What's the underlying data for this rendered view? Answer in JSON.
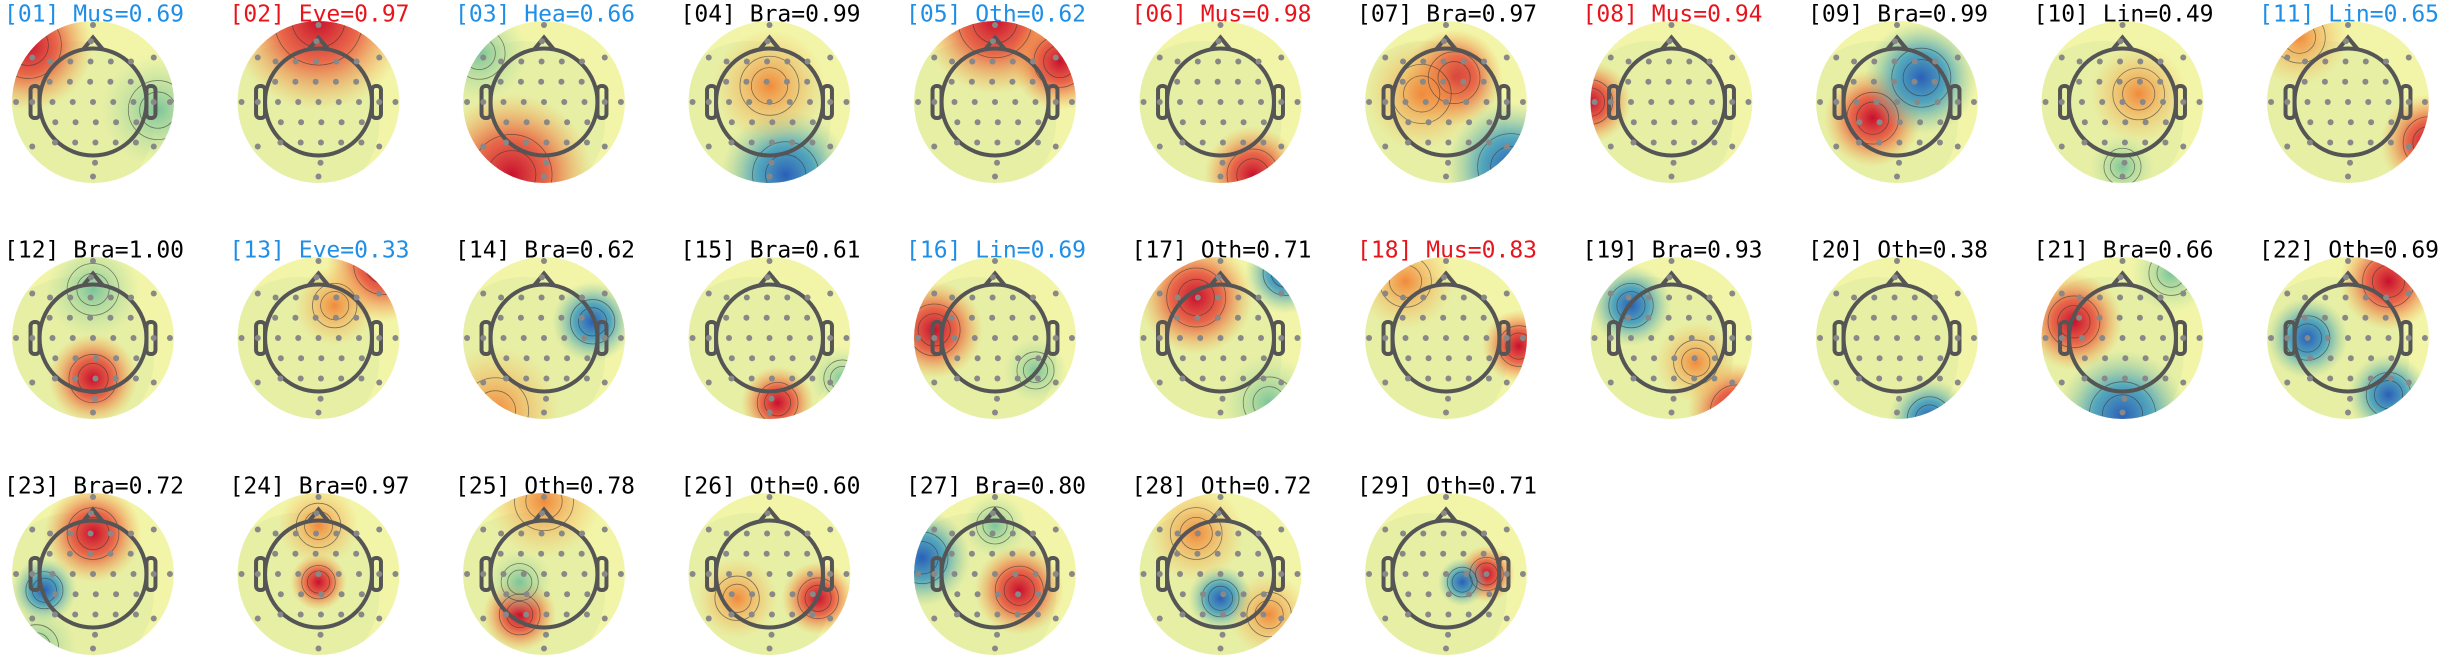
{
  "components": [
    {
      "label": "[01] Mus=0.69",
      "color": "#1e8ee6"
    },
    {
      "label": "[02] Eye=0.97",
      "color": "#e8141c"
    },
    {
      "label": "[03] Hea=0.66",
      "color": "#1e8ee6"
    },
    {
      "label": "[04] Bra=0.99",
      "color": "#000000"
    },
    {
      "label": "[05] Oth=0.62",
      "color": "#1e8ee6"
    },
    {
      "label": "[06] Mus=0.98",
      "color": "#e8141c"
    },
    {
      "label": "[07] Bra=0.97",
      "color": "#000000"
    },
    {
      "label": "[08] Mus=0.94",
      "color": "#e8141c"
    },
    {
      "label": "[09] Bra=0.99",
      "color": "#000000"
    },
    {
      "label": "[10] Lin=0.49",
      "color": "#000000"
    },
    {
      "label": "[11] Lin=0.65",
      "color": "#1e8ee6"
    },
    {
      "label": "[12] Bra=1.00",
      "color": "#000000"
    },
    {
      "label": "[13] Eye=0.33",
      "color": "#1e8ee6"
    },
    {
      "label": "[14] Bra=0.62",
      "color": "#000000"
    },
    {
      "label": "[15] Bra=0.61",
      "color": "#000000"
    },
    {
      "label": "[16] Lin=0.69",
      "color": "#1e8ee6"
    },
    {
      "label": "[17] Oth=0.71",
      "color": "#000000"
    },
    {
      "label": "[18] Mus=0.83",
      "color": "#e8141c"
    },
    {
      "label": "[19] Bra=0.93",
      "color": "#000000"
    },
    {
      "label": "[20] Oth=0.38",
      "color": "#000000"
    },
    {
      "label": "[21] Bra=0.66",
      "color": "#000000"
    },
    {
      "label": "[22] Oth=0.69",
      "color": "#000000"
    },
    {
      "label": "[23] Bra=0.72",
      "color": "#000000"
    },
    {
      "label": "[24] Bra=0.97",
      "color": "#000000"
    },
    {
      "label": "[25] Oth=0.78",
      "color": "#000000"
    },
    {
      "label": "[26] Oth=0.60",
      "color": "#000000"
    },
    {
      "label": "[27] Bra=0.80",
      "color": "#000000"
    },
    {
      "label": "[28] Oth=0.72",
      "color": "#000000"
    },
    {
      "label": "[29] Oth=0.71",
      "color": "#000000"
    }
  ]
}
